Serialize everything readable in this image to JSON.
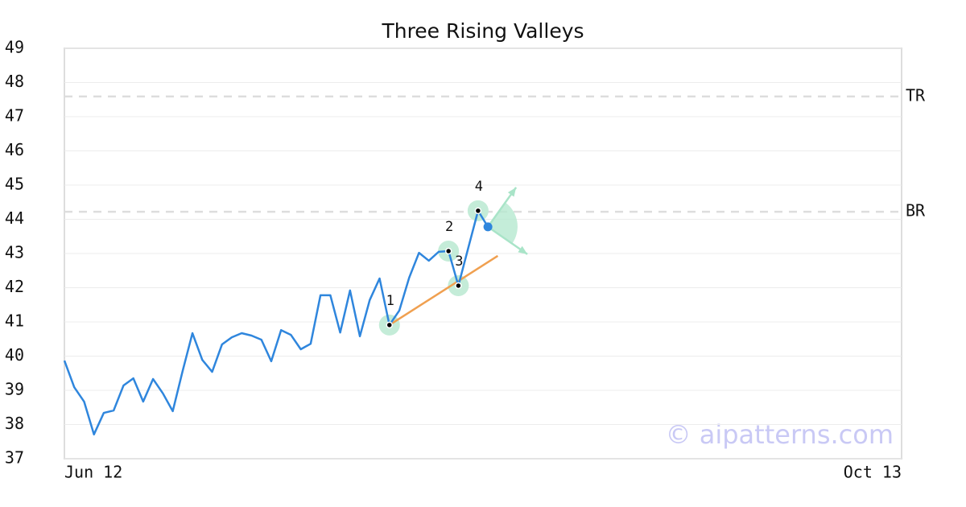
{
  "chart_data": {
    "type": "line",
    "title": "Three Rising Valleys",
    "categories": [
      "Jun 12",
      null,
      null,
      null,
      null,
      null,
      null,
      null,
      null,
      null,
      null,
      null,
      null,
      null,
      null,
      null,
      null,
      null,
      null,
      null,
      null,
      null,
      null,
      null,
      null,
      null,
      null,
      null,
      null,
      null,
      null,
      null,
      null,
      null,
      null,
      null,
      null,
      null,
      null,
      null,
      null,
      null,
      null,
      null,
      null,
      null,
      null,
      null,
      null,
      null,
      null,
      null,
      null,
      null,
      null,
      null,
      null,
      null,
      null,
      null,
      null,
      null,
      null,
      null,
      null,
      null,
      null,
      null,
      null,
      null,
      null,
      null,
      null,
      null,
      null,
      null,
      null,
      null,
      null,
      null,
      null,
      null,
      null,
      null,
      null,
      "Oct 13"
    ],
    "values": [
      39.87,
      39.09,
      38.67,
      37.71,
      38.34,
      38.41,
      39.14,
      39.35,
      38.67,
      39.33,
      38.91,
      38.39,
      39.56,
      40.67,
      39.89,
      39.54,
      40.34,
      40.55,
      40.67,
      40.6,
      40.48,
      39.85,
      40.76,
      40.62,
      40.2,
      40.36,
      41.78,
      41.78,
      40.69,
      41.92,
      40.58,
      41.64,
      42.27,
      40.91,
      41.33,
      42.29,
      43.02,
      42.79,
      43.05,
      43.07,
      42.06,
      43.16,
      44.25,
      43.78,
      null,
      null,
      null,
      null,
      null,
      null,
      null,
      null,
      null,
      null,
      null,
      null,
      null,
      null,
      null,
      null,
      null,
      null,
      null,
      null,
      null,
      null,
      null,
      null,
      null,
      null,
      null,
      null,
      null,
      null,
      null,
      null,
      null,
      null,
      null,
      null,
      null,
      null,
      null,
      null,
      null,
      null
    ],
    "color": "#2f86dd",
    "ylim": [
      37,
      49
    ],
    "yticks": [
      37,
      38,
      39,
      40,
      41,
      42,
      43,
      44,
      45,
      46,
      47,
      48,
      49
    ],
    "grid": true,
    "pattern_points": {
      "labels": [
        "1",
        "2",
        "3",
        "4"
      ],
      "at": [
        33,
        39,
        40,
        42
      ]
    },
    "levels": [
      {
        "label": "TR",
        "value": 47.59
      },
      {
        "label": "BR",
        "value": 44.22
      }
    ],
    "trendline": {
      "x": [
        33,
        44
      ],
      "y": [
        40.91,
        42.93
      ],
      "color": "#f0a050"
    },
    "watermark": "© aipatterns.com"
  }
}
